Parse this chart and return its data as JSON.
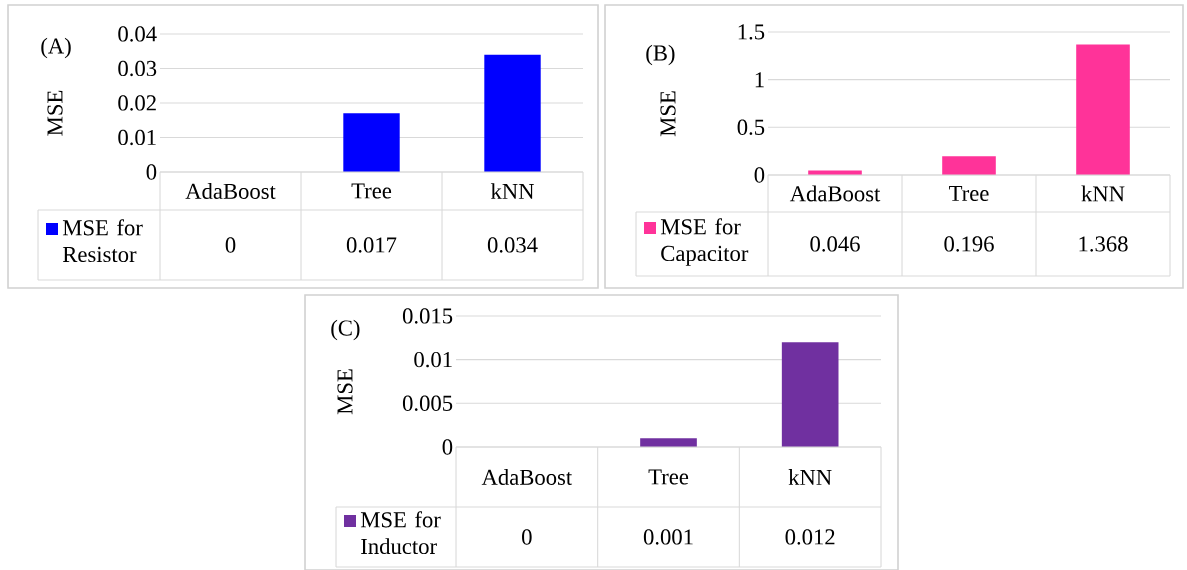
{
  "chart_data": [
    {
      "type": "bar",
      "title": "(A)",
      "ylabel": "MSE",
      "categories": [
        "AdaBoost",
        "Tree",
        "kNN"
      ],
      "series": [
        {
          "name": "MSE for Resistor",
          "color": "#0000ff",
          "values": [
            0,
            0.017,
            0.034
          ]
        }
      ],
      "ylim": [
        0,
        0.04
      ],
      "yticks": [
        0,
        0.01,
        0.02,
        0.03,
        0.04
      ],
      "grid": "y",
      "legend": "bottom",
      "data_labels": true
    },
    {
      "type": "bar",
      "title": "(B)",
      "ylabel": "MSE",
      "categories": [
        "AdaBoost",
        "Tree",
        "kNN"
      ],
      "series": [
        {
          "name": "MSE for Capacitor",
          "color": "#ff3399",
          "values": [
            0.046,
            0.196,
            1.368
          ]
        }
      ],
      "ylim": [
        0,
        1.5
      ],
      "yticks": [
        0,
        0.5,
        1,
        1.5
      ],
      "grid": "y",
      "legend": "bottom",
      "data_labels": true
    },
    {
      "type": "bar",
      "title": "(C)",
      "ylabel": "MSE",
      "categories": [
        "AdaBoost",
        "Tree",
        "kNN"
      ],
      "series": [
        {
          "name": "MSE for Inductor",
          "color": "#7030a0",
          "values": [
            0,
            0.001,
            0.012
          ]
        }
      ],
      "ylim": [
        0,
        0.015
      ],
      "yticks": [
        0,
        0.005,
        0.01,
        0.015
      ],
      "grid": "y",
      "legend": "bottom",
      "data_labels": true
    }
  ]
}
